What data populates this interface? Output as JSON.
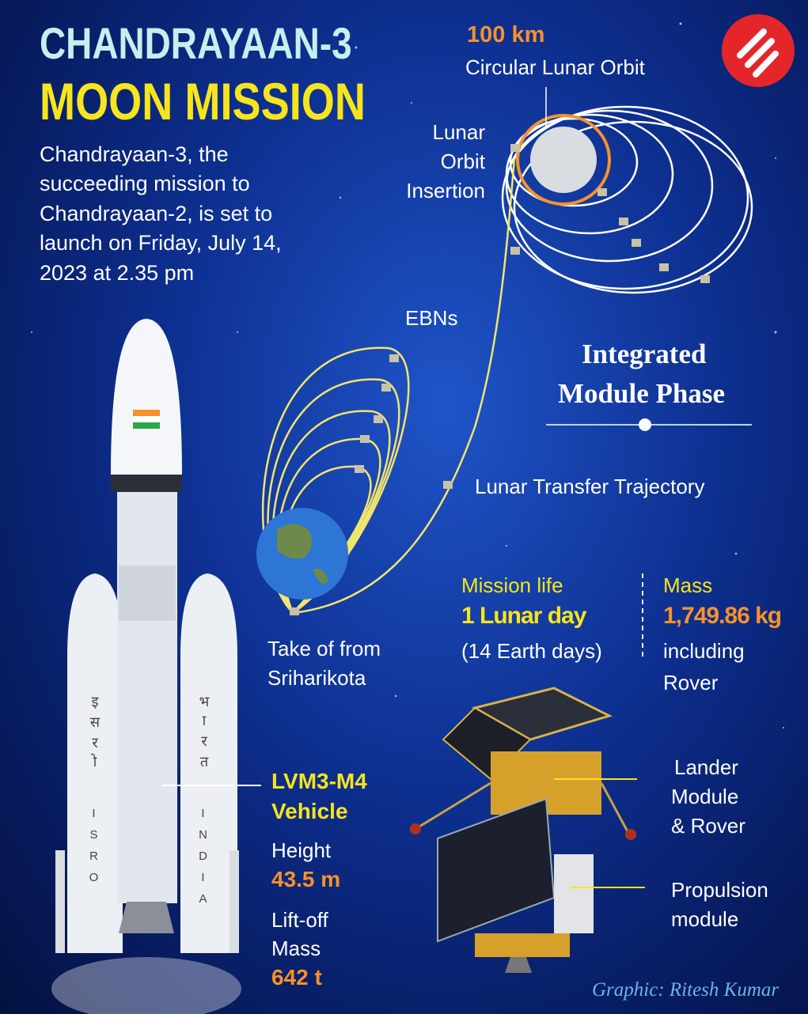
{
  "header": {
    "title_lines": [
      "CHANDRAYAAN-3",
      "MOON MISSION"
    ],
    "intro_lines": [
      "Chandrayaan-3, the",
      "succeeding mission to",
      "Chandrayaan-2, is set to",
      "launch on Friday, July 14,",
      "2023 at 2.35 pm"
    ]
  },
  "orbit": {
    "distance": "100 km",
    "orbit_name": "Circular Lunar Orbit",
    "insertion_lines": [
      "Lunar",
      "Orbit",
      "Insertion"
    ],
    "ebns": "EBNs",
    "phase_lines": [
      "Integrated",
      "Module Phase"
    ],
    "trajectory": "Lunar Transfer Trajectory",
    "launch_lines": [
      "Take of from",
      "Sriharikota"
    ]
  },
  "mission": {
    "life_label": "Mission life",
    "life_value": "1 Lunar day",
    "life_note": "(14 Earth days)",
    "mass_label": "Mass",
    "mass_value": "1,749.86 kg",
    "mass_note_lines": [
      "including",
      "Rover"
    ]
  },
  "vehicle": {
    "name_lines": [
      "LVM3-M4",
      "Vehicle"
    ],
    "height_label": "Height",
    "height_value": "43.5 m",
    "liftoff_lines": [
      "Lift-off",
      "Mass"
    ],
    "liftoff_value": "642 t",
    "booster_left": "ISRO",
    "booster_right": "INDIA",
    "hindi_left": "इसरो",
    "hindi_right": "भारत"
  },
  "spacecraft": {
    "lander_lines": [
      "Lander",
      "Module",
      "& Rover"
    ],
    "propulsion_lines": [
      "Propulsion",
      "module"
    ]
  },
  "credit": "Graphic: Ritesh Kumar"
}
